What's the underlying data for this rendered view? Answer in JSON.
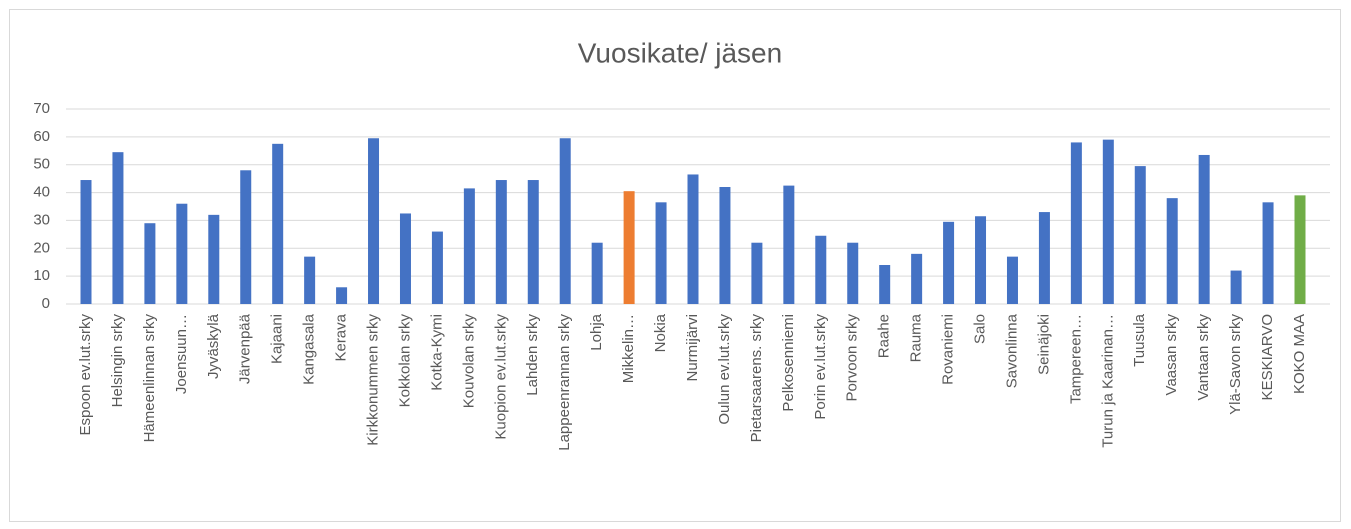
{
  "chart_data": {
    "type": "bar",
    "title": "Vuosikate/ jäsen",
    "categories": [
      "Espoon ev.lut.srky",
      "Helsingin srky",
      "Hämeenlinnan srky",
      "Joensuun…",
      "Jyväskylä",
      "Järvenpää",
      "Kajaani",
      "Kangasala",
      "Kerava",
      "Kirkkonummen srky",
      "Kokkolan srky",
      "Kotka-Kymi",
      "Kouvolan srky",
      "Kuopion ev.lut.srky",
      "Lahden srky",
      "Lappeenrannan srky",
      "Lohja",
      "Mikkelin…",
      "Nokia",
      "Nurmijärvi",
      "Oulun ev.lut.srky",
      "Pietarsaarens. srky",
      "Pelkosenniemi",
      "Porin ev.lut.srky",
      "Porvoon srky",
      "Raahe",
      "Rauma",
      "Rovaniemi",
      "Salo",
      "Savonlinna",
      "Seinäjoki",
      "Tampereen…",
      "Turun ja Kaarinan…",
      "Tuusula",
      "Vaasan srky",
      "Vantaan srky",
      "Ylä-Savon srky",
      "KESKIARVO",
      "KOKO MAA"
    ],
    "values": [
      44.5,
      54.5,
      29,
      36,
      32,
      48,
      57.5,
      17,
      6,
      59.5,
      32.5,
      26,
      41.5,
      44.5,
      44.5,
      59.5,
      22,
      40.5,
      36.5,
      46.5,
      42,
      22,
      42.5,
      24.5,
      22,
      14,
      18,
      29.5,
      31.5,
      17,
      33,
      58,
      59,
      49.5,
      38,
      53.5,
      12,
      36.5,
      39
    ],
    "colors": [
      "#4472c4",
      "#4472c4",
      "#4472c4",
      "#4472c4",
      "#4472c4",
      "#4472c4",
      "#4472c4",
      "#4472c4",
      "#4472c4",
      "#4472c4",
      "#4472c4",
      "#4472c4",
      "#4472c4",
      "#4472c4",
      "#4472c4",
      "#4472c4",
      "#4472c4",
      "#ed7d31",
      "#4472c4",
      "#4472c4",
      "#4472c4",
      "#4472c4",
      "#4472c4",
      "#4472c4",
      "#4472c4",
      "#4472c4",
      "#4472c4",
      "#4472c4",
      "#4472c4",
      "#4472c4",
      "#4472c4",
      "#4472c4",
      "#4472c4",
      "#4472c4",
      "#4472c4",
      "#4472c4",
      "#4472c4",
      "#4472c4",
      "#70ad47"
    ],
    "ylim": [
      0,
      70
    ],
    "yticks": [
      0,
      10,
      20,
      30,
      40,
      50,
      60,
      70
    ],
    "grid": true
  }
}
